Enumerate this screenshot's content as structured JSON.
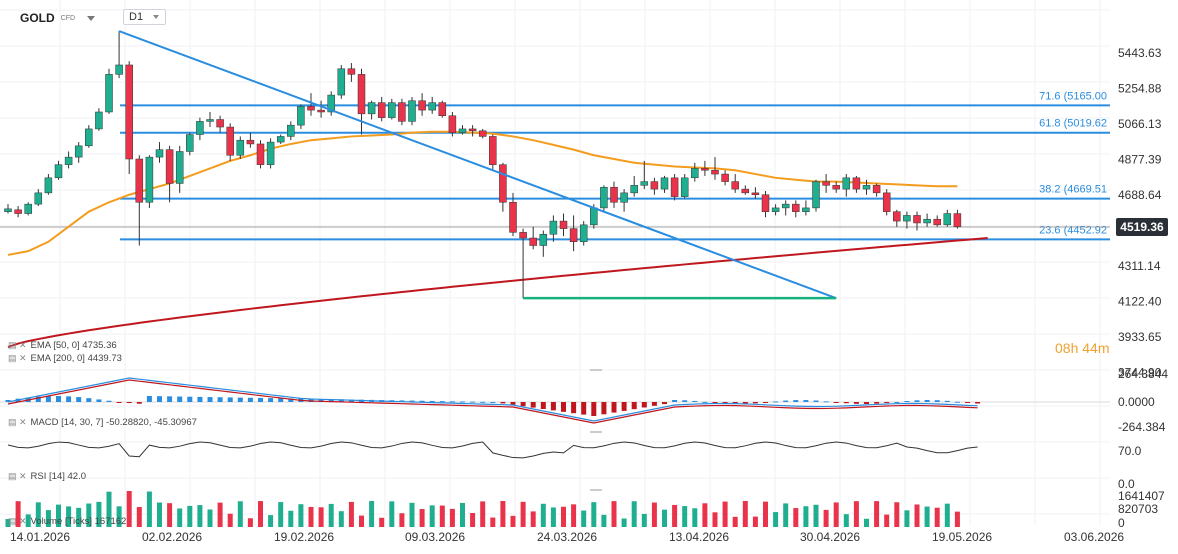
{
  "header": {
    "symbol": "GOLD",
    "symbol_type": "CFD",
    "timeframe": "D1"
  },
  "countdown": "08h 44m",
  "last_price": "4519.36",
  "indicators": {
    "ema50": "EMA [50, 0] 4735.36",
    "ema200": "EMA [200, 0] 4439.73",
    "macd": "MACD [14, 30, 7] -50.28820, -45.30967",
    "rsi": "RSI [14] 42.0",
    "volume": "Volume [Ticks] 167162"
  },
  "colors": {
    "up": "#1fae8f",
    "down": "#e8334a",
    "ema50": "#f39c1d",
    "ema200": "#c0171e",
    "fib": "#2a8de0",
    "trend": "#2a8de0",
    "support": "#17b07f"
  },
  "chart_data": {
    "type": "candlestick",
    "price_axis_ticks": [
      "5443.63",
      "5254.88",
      "5066.13",
      "4877.39",
      "4688.64",
      "4311.14",
      "4122.40",
      "3933.65",
      "3744.90"
    ],
    "x_tick_labels": [
      "14.01.2026",
      "02.02.2026",
      "19.02.2026",
      "09.03.2026",
      "24.03.2026",
      "13.04.2026",
      "30.04.2026",
      "19.05.2026",
      "03.06.2026"
    ],
    "fib_levels": [
      {
        "label": "71.6 (5165.00",
        "value": 5165.0
      },
      {
        "label": "61.8 (5019.62",
        "value": 5019.62
      },
      {
        "label": "38.2 (4669.51",
        "value": 4669.51
      },
      {
        "label": "23.6 (4452.92",
        "value": 4452.92
      }
    ],
    "ohlc": [
      [
        4600,
        4640,
        4590,
        4615
      ],
      [
        4610,
        4630,
        4570,
        4590
      ],
      [
        4590,
        4650,
        4580,
        4640
      ],
      [
        4640,
        4720,
        4630,
        4700
      ],
      [
        4700,
        4800,
        4690,
        4780
      ],
      [
        4780,
        4870,
        4770,
        4850
      ],
      [
        4850,
        4920,
        4830,
        4890
      ],
      [
        4890,
        4970,
        4860,
        4950
      ],
      [
        4950,
        5060,
        4940,
        5040
      ],
      [
        5040,
        5150,
        5030,
        5130
      ],
      [
        5130,
        5360,
        5120,
        5330
      ],
      [
        5330,
        5560,
        5310,
        5380
      ],
      [
        5380,
        5400,
        4800,
        4880
      ],
      [
        4880,
        4900,
        4420,
        4650
      ],
      [
        4650,
        4900,
        4620,
        4890
      ],
      [
        4890,
        4970,
        4860,
        4930
      ],
      [
        4930,
        4950,
        4650,
        4750
      ],
      [
        4750,
        4950,
        4700,
        4920
      ],
      [
        4920,
        5020,
        4900,
        5010
      ],
      [
        5010,
        5100,
        4980,
        5080
      ],
      [
        5080,
        5130,
        5050,
        5090
      ],
      [
        5090,
        5110,
        5020,
        5050
      ],
      [
        5050,
        5070,
        4870,
        4900
      ],
      [
        4900,
        5000,
        4880,
        4980
      ],
      [
        4980,
        5020,
        4940,
        4960
      ],
      [
        4960,
        4980,
        4830,
        4850
      ],
      [
        4850,
        4990,
        4830,
        4970
      ],
      [
        4970,
        5010,
        4960,
        5000
      ],
      [
        5000,
        5080,
        4980,
        5060
      ],
      [
        5060,
        5170,
        5040,
        5160
      ],
      [
        5160,
        5230,
        5110,
        5140
      ],
      [
        5140,
        5190,
        5100,
        5130
      ],
      [
        5130,
        5240,
        5110,
        5220
      ],
      [
        5220,
        5380,
        5200,
        5360
      ],
      [
        5360,
        5390,
        5290,
        5330
      ],
      [
        5330,
        5360,
        5010,
        5120
      ],
      [
        5120,
        5190,
        5090,
        5180
      ],
      [
        5180,
        5210,
        5080,
        5100
      ],
      [
        5100,
        5200,
        5090,
        5180
      ],
      [
        5180,
        5200,
        5060,
        5080
      ],
      [
        5080,
        5210,
        5060,
        5190
      ],
      [
        5190,
        5230,
        5110,
        5140
      ],
      [
        5140,
        5210,
        5120,
        5180
      ],
      [
        5180,
        5190,
        5100,
        5110
      ],
      [
        5110,
        5130,
        5000,
        5020
      ],
      [
        5020,
        5060,
        5010,
        5040
      ],
      [
        5040,
        5060,
        5000,
        5030
      ],
      [
        5030,
        5040,
        4990,
        5000
      ],
      [
        5000,
        5010,
        4820,
        4850
      ],
      [
        4850,
        4860,
        4600,
        4650
      ],
      [
        4650,
        4700,
        4470,
        4490
      ],
      [
        4490,
        4510,
        4140,
        4460
      ],
      [
        4460,
        4520,
        4400,
        4420
      ],
      [
        4420,
        4500,
        4360,
        4480
      ],
      [
        4480,
        4580,
        4440,
        4550
      ],
      [
        4550,
        4590,
        4470,
        4510
      ],
      [
        4510,
        4580,
        4390,
        4440
      ],
      [
        4440,
        4550,
        4420,
        4530
      ],
      [
        4530,
        4640,
        4510,
        4620
      ],
      [
        4620,
        4740,
        4600,
        4730
      ],
      [
        4730,
        4760,
        4620,
        4650
      ],
      [
        4650,
        4720,
        4600,
        4700
      ],
      [
        4700,
        4790,
        4680,
        4740
      ],
      [
        4740,
        4870,
        4720,
        4760
      ],
      [
        4760,
        4780,
        4690,
        4720
      ],
      [
        4720,
        4790,
        4700,
        4780
      ],
      [
        4780,
        4800,
        4660,
        4680
      ],
      [
        4680,
        4800,
        4670,
        4780
      ],
      [
        4780,
        4860,
        4760,
        4830
      ],
      [
        4830,
        4870,
        4790,
        4820
      ],
      [
        4820,
        4890,
        4770,
        4800
      ],
      [
        4800,
        4820,
        4740,
        4760
      ],
      [
        4760,
        4800,
        4700,
        4720
      ],
      [
        4720,
        4740,
        4690,
        4700
      ],
      [
        4700,
        4730,
        4670,
        4690
      ],
      [
        4690,
        4710,
        4570,
        4600
      ],
      [
        4600,
        4640,
        4580,
        4620
      ],
      [
        4620,
        4660,
        4580,
        4640
      ],
      [
        4640,
        4660,
        4570,
        4600
      ],
      [
        4600,
        4660,
        4580,
        4620
      ],
      [
        4620,
        4770,
        4600,
        4760
      ],
      [
        4760,
        4800,
        4700,
        4740
      ],
      [
        4740,
        4760,
        4700,
        4720
      ],
      [
        4720,
        4800,
        4680,
        4780
      ],
      [
        4780,
        4790,
        4700,
        4720
      ],
      [
        4720,
        4770,
        4690,
        4740
      ],
      [
        4740,
        4750,
        4680,
        4700
      ],
      [
        4700,
        4720,
        4580,
        4600
      ],
      [
        4600,
        4610,
        4520,
        4550
      ],
      [
        4550,
        4600,
        4510,
        4580
      ],
      [
        4580,
        4600,
        4500,
        4540
      ],
      [
        4540,
        4590,
        4520,
        4560
      ],
      [
        4560,
        4580,
        4520,
        4530
      ],
      [
        4530,
        4610,
        4520,
        4590
      ],
      [
        4590,
        4610,
        4510,
        4520
      ]
    ]
  }
}
